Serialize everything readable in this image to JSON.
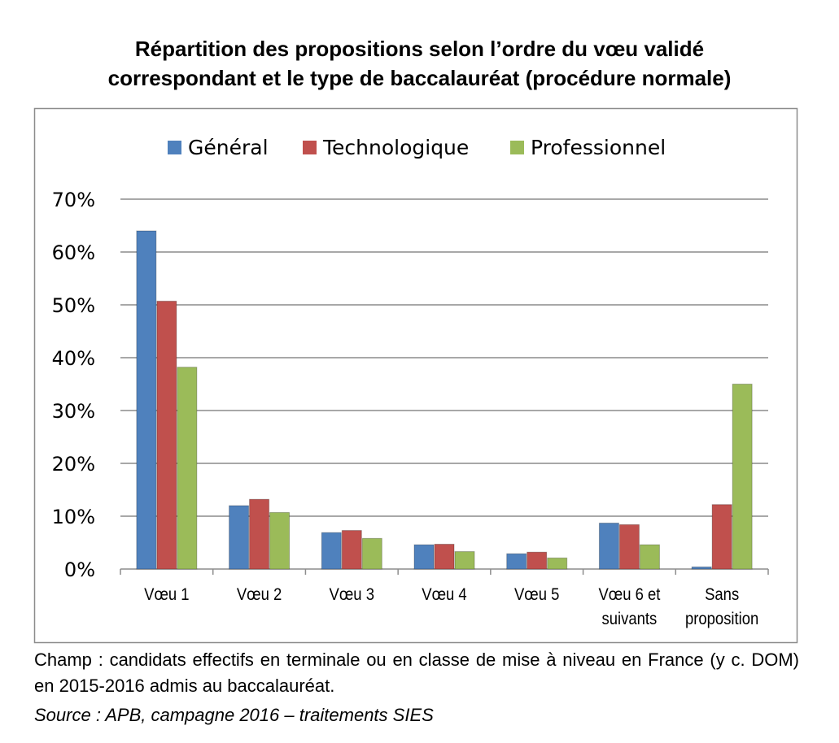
{
  "chart_data": {
    "type": "bar",
    "title_lines": [
      "Répartition des propositions selon l’ordre du vœu validé",
      "correspondant et le type de baccalauréat (procédure normale)"
    ],
    "categories": [
      [
        "Vœu 1"
      ],
      [
        "Vœu 2"
      ],
      [
        "Vœu 3"
      ],
      [
        "Vœu 4"
      ],
      [
        "Vœu 5"
      ],
      [
        "Vœu 6 et",
        "suivants"
      ],
      [
        "Sans",
        "proposition"
      ]
    ],
    "series": [
      {
        "name": "Général",
        "color": "#4F81BD",
        "values": [
          64.0,
          12.0,
          6.9,
          4.6,
          2.9,
          8.7,
          0.4
        ]
      },
      {
        "name": "Technologique",
        "color": "#C0504D",
        "values": [
          50.7,
          13.2,
          7.3,
          4.7,
          3.2,
          8.4,
          12.2
        ]
      },
      {
        "name": "Professionnel",
        "color": "#9BBB59",
        "values": [
          38.2,
          10.7,
          5.8,
          3.3,
          2.1,
          4.6,
          35.0
        ]
      }
    ],
    "ylim": [
      0,
      70
    ],
    "yticks": [
      0,
      10,
      20,
      30,
      40,
      50,
      60,
      70
    ],
    "ytick_labels": [
      "0%",
      "10%",
      "20%",
      "30%",
      "40%",
      "50%",
      "60%",
      "70%"
    ],
    "grid": true,
    "legend_position": "top"
  },
  "notes": {
    "champ": "Champ : candidats effectifs en terminale ou en classe de mise à niveau en France (y c. DOM) en 2015-2016 admis au baccalauréat.",
    "source": "Source : APB, campagne 2016 – traitements SIES"
  }
}
